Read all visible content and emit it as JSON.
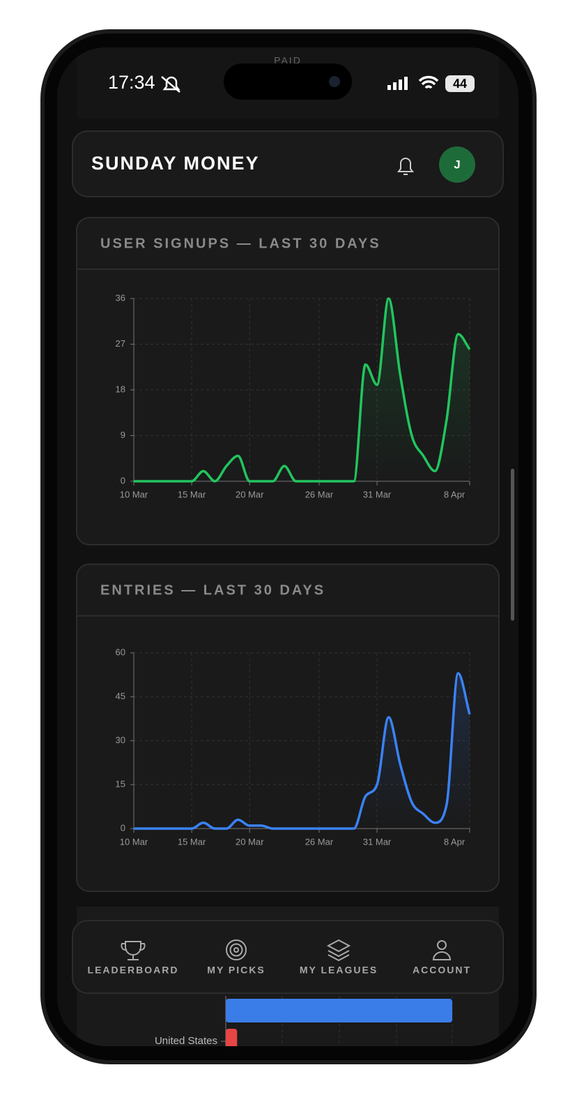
{
  "status_bar": {
    "time": "17:34",
    "battery": "44"
  },
  "behind_status": "PAID",
  "header": {
    "title": "SUNDAY MONEY",
    "avatar": "J"
  },
  "chart_data": [
    {
      "type": "line",
      "title": "USER SIGNUPS — LAST 30 DAYS",
      "color": "#22c55e",
      "grid": true,
      "categories": [
        "10 Mar",
        null,
        null,
        null,
        null,
        "15 Mar",
        null,
        null,
        null,
        null,
        "20 Mar",
        null,
        null,
        null,
        null,
        null,
        "26 Mar",
        null,
        null,
        null,
        null,
        "31 Mar",
        null,
        null,
        null,
        null,
        null,
        null,
        null,
        "8 Apr"
      ],
      "values": [
        0,
        0,
        0,
        0,
        0,
        0,
        2,
        0,
        3,
        5,
        0,
        0,
        0,
        3,
        0,
        0,
        0,
        0,
        0,
        0,
        23,
        19,
        36,
        21,
        9,
        5,
        2,
        12,
        29,
        26
      ],
      "ylim": [
        0,
        36
      ],
      "yticks": [
        0,
        9,
        18,
        27,
        36
      ]
    },
    {
      "type": "line",
      "title": "ENTRIES — LAST 30 DAYS",
      "color": "#3b82f6",
      "grid": true,
      "categories": [
        "10 Mar",
        null,
        null,
        null,
        null,
        "15 Mar",
        null,
        null,
        null,
        null,
        "20 Mar",
        null,
        null,
        null,
        null,
        null,
        "26 Mar",
        null,
        null,
        null,
        null,
        "31 Mar",
        null,
        null,
        null,
        null,
        null,
        null,
        null,
        "8 Apr"
      ],
      "values": [
        0,
        0,
        0,
        0,
        0,
        0,
        2,
        0,
        0,
        3,
        1,
        1,
        0,
        0,
        0,
        0,
        0,
        0,
        0,
        0,
        11,
        15,
        38,
        22,
        9,
        5,
        2,
        8,
        53,
        39
      ],
      "ylim": [
        0,
        60
      ],
      "yticks": [
        0,
        15,
        30,
        45,
        60
      ]
    },
    {
      "type": "hbar",
      "categories": [
        null,
        "United States"
      ],
      "values": [
        4,
        0.2
      ],
      "colors": [
        "#3b7de8",
        "#e84545"
      ],
      "xlim": [
        0,
        4
      ]
    }
  ],
  "nav": {
    "items": [
      "LEADERBOARD",
      "MY PICKS",
      "MY LEAGUES",
      "ACCOUNT"
    ]
  }
}
